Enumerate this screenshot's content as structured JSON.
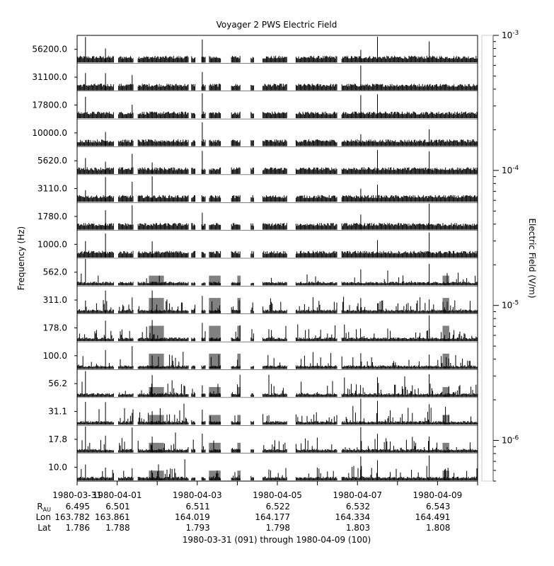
{
  "chart_data": {
    "type": "multi-channel spectrogram strip",
    "title": "Voyager 2 PWS Electric Field",
    "ylabel": "Frequency (Hz)",
    "colorbar_label": "Electric Field (V/m)",
    "colorbar_ticks": [
      {
        "base": "10",
        "exp": "-3",
        "value": 0.001
      },
      {
        "base": "10",
        "exp": "-4",
        "value": 0.0001
      },
      {
        "base": "10",
        "exp": "-5",
        "value": 1e-05
      },
      {
        "base": "10",
        "exp": "-6",
        "value": 1e-06
      }
    ],
    "colorbar_scale": "log",
    "colorbar_range": [
      5e-07,
      0.001
    ],
    "channels_hz": [
      "56200.0",
      "31100.0",
      "17800.0",
      "10000.0",
      "5620.0",
      "3110.0",
      "1780.0",
      "1000.0",
      "562.0",
      "311.0",
      "178.0",
      "100.0",
      "56.2",
      "31.1",
      "17.8",
      "10.0"
    ],
    "x_range": [
      "1980-03-31",
      "1980-04-10"
    ],
    "x_ticks": [
      "1980-03-31",
      "1980-04-01",
      "1980-04-03",
      "1980-04-05",
      "1980-04-07",
      "1980-04-09"
    ],
    "ephemeris_labels": {
      "r": "R",
      "r_sub": "AU",
      "lon": "Lon",
      "lat": "Lat"
    },
    "ephemeris": [
      {
        "date": "1980-03-31",
        "r": "6.495",
        "lon": "163.782",
        "lat": "1.786"
      },
      {
        "date": "1980-04-01",
        "r": "6.501",
        "lon": "163.861",
        "lat": "1.788"
      },
      {
        "date": "1980-04-03",
        "r": "6.511",
        "lon": "164.019",
        "lat": "1.793"
      },
      {
        "date": "1980-04-05",
        "r": "6.522",
        "lon": "164.177",
        "lat": "1.798"
      },
      {
        "date": "1980-04-07",
        "r": "6.532",
        "lon": "164.334",
        "lat": "1.803"
      },
      {
        "date": "1980-04-09",
        "r": "6.543",
        "lon": "164.491",
        "lat": "1.808"
      }
    ],
    "x_caption": "1980-03-31 (091) through 1980-04-09 (100)",
    "data_gaps": [
      [
        "1980-03-31T22:00",
        "1980-04-01T00:30"
      ],
      [
        "1980-04-01T10:00",
        "1980-04-01T12:30"
      ],
      [
        "1980-04-02T19:00",
        "1980-04-02T20:30"
      ],
      [
        "1980-04-02T23:00",
        "1980-04-03T02:30"
      ],
      [
        "1980-04-03T05:00",
        "1980-04-03T07:00"
      ],
      [
        "1980-04-03T14:00",
        "1980-04-03T20:30"
      ],
      [
        "1980-04-04T02:00",
        "1980-04-04T08:00"
      ],
      [
        "1980-04-04T10:00",
        "1980-04-04T15:00"
      ],
      [
        "1980-04-05T06:00",
        "1980-04-05T11:00"
      ],
      [
        "1980-04-06T12:00",
        "1980-04-06T14:30"
      ]
    ],
    "colors": {
      "signal": "#000000",
      "background": "#ffffff",
      "enhanced": "#808080"
    }
  }
}
